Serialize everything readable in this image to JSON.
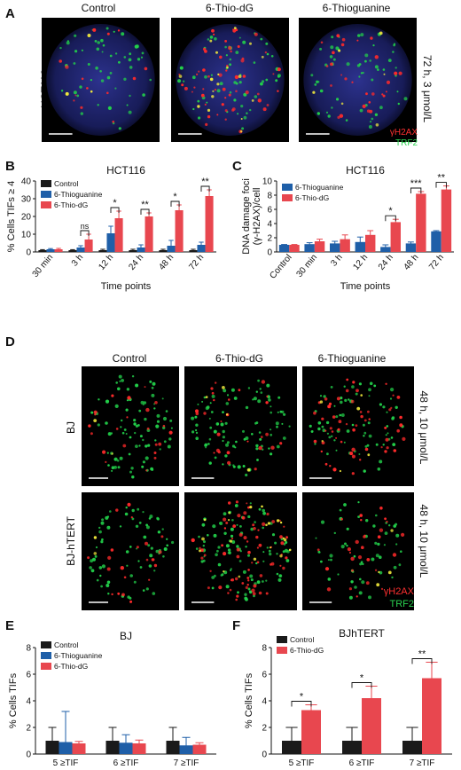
{
  "colors": {
    "control": "#1a1a1a",
    "thioguanine": "#1f5fa8",
    "thio_dg": "#e8474f",
    "micro_bg": "#000000",
    "red_spot": "#ff2a2a",
    "green_spot": "#22d04a",
    "yellow_spot": "#f2ea3c",
    "nucleus": "#2a2f86"
  },
  "panels": {
    "A": {
      "letter": "A",
      "columns": [
        "Control",
        "6-Thio-dG",
        "6-Thioguanine"
      ],
      "row_label": "HCT116",
      "side_label": "72 h, 3 μmol/L",
      "legend": [
        "γH2AX",
        "TRF2"
      ]
    },
    "D": {
      "letter": "D",
      "columns": [
        "Control",
        "6-Thio-dG",
        "6-Thioguanine"
      ],
      "rows": [
        {
          "label": "BJ",
          "side_label": "48 h, 10 μmol/L"
        },
        {
          "label": "BJ-hTERT",
          "side_label": "48 h, 10 μmol/L"
        }
      ],
      "legend": [
        "γH2AX",
        "TRF2"
      ]
    }
  },
  "chart_data": [
    {
      "panel": "B",
      "type": "bar",
      "title": "HCT116",
      "xlabel": "Time points",
      "ylabel": "% Cells TIFs ≥ 4",
      "ylim": [
        0,
        40
      ],
      "yticks": [
        0,
        10,
        20,
        30,
        40
      ],
      "categories": [
        "30 min",
        "3 h",
        "12 h",
        "24 h",
        "48 h",
        "72 h"
      ],
      "legend_position": "top-left",
      "series": [
        {
          "name": "Control",
          "color": "#1a1a1a",
          "values": [
            1,
            1,
            1,
            1,
            1,
            1
          ],
          "errors": [
            0.3,
            0.3,
            0.5,
            0.5,
            0.5,
            0.5
          ]
        },
        {
          "name": "6-Thioguanine",
          "color": "#1f5fa8",
          "values": [
            1.5,
            2.5,
            10.5,
            2.5,
            3.5,
            4
          ],
          "errors": [
            0.4,
            1,
            4,
            1.5,
            3,
            1.5
          ]
        },
        {
          "name": "6-Thio-dG",
          "color": "#e8474f",
          "values": [
            1.5,
            7,
            19,
            20,
            23.5,
            31.5
          ],
          "errors": [
            0.5,
            3,
            4,
            2,
            3,
            3.5
          ]
        }
      ],
      "significance": [
        {
          "category": "3 h",
          "label": "ns"
        },
        {
          "category": "12 h",
          "label": "*"
        },
        {
          "category": "24 h",
          "label": "**"
        },
        {
          "category": "48 h",
          "label": "*"
        },
        {
          "category": "72 h",
          "label": "**"
        }
      ]
    },
    {
      "panel": "C",
      "type": "bar",
      "title": "HCT116",
      "xlabel": "Time points",
      "ylabel": "DNA damage foci (γ-H2AX)/cell",
      "ylabel_lines": [
        "DNA damage foci",
        "(γ-H2AX)/cell"
      ],
      "ylim": [
        0,
        10
      ],
      "yticks": [
        0,
        2,
        4,
        6,
        8,
        10
      ],
      "categories": [
        "Control",
        "30 min",
        "3 h",
        "12 h",
        "24 h",
        "48 h",
        "72 h"
      ],
      "legend_position": "top-left",
      "series": [
        {
          "name": "6-Thioguanine",
          "color": "#1f5fa8",
          "values": [
            1,
            1.1,
            1.2,
            1.4,
            0.7,
            1.2,
            2.9
          ],
          "errors": [
            0.05,
            0.2,
            0.3,
            0.7,
            0.3,
            0.2,
            0.1
          ]
        },
        {
          "name": "6-Thio-dG",
          "color": "#e8474f",
          "values": [
            1,
            1.5,
            1.8,
            2.4,
            4.2,
            8.2,
            8.8
          ],
          "errors": [
            0.05,
            0.3,
            0.6,
            0.6,
            0.4,
            0.3,
            0.5
          ]
        }
      ],
      "significance": [
        {
          "category": "24 h",
          "label": "*"
        },
        {
          "category": "48 h",
          "label": "***"
        },
        {
          "category": "72 h",
          "label": "**"
        }
      ]
    },
    {
      "panel": "E",
      "type": "bar",
      "title": "BJ",
      "xlabel": "",
      "ylabel": "% Cells TIFs",
      "ylim": [
        0,
        8
      ],
      "yticks": [
        0,
        2,
        4,
        6,
        8
      ],
      "categories": [
        "5 ≥TIF",
        "6 ≥TIF",
        "7 ≥TIF"
      ],
      "legend_position": "top-left",
      "series": [
        {
          "name": "Control",
          "color": "#1a1a1a",
          "values": [
            1,
            1,
            1
          ],
          "errors": [
            1,
            1,
            1
          ]
        },
        {
          "name": "6-Thioguanine",
          "color": "#1f5fa8",
          "values": [
            0.9,
            0.85,
            0.65
          ],
          "errors": [
            2.3,
            0.6,
            0.6
          ]
        },
        {
          "name": "6-Thio-dG",
          "color": "#e8474f",
          "values": [
            0.8,
            0.8,
            0.7
          ],
          "errors": [
            0.15,
            0.25,
            0.15
          ]
        }
      ],
      "significance": []
    },
    {
      "panel": "F",
      "type": "bar",
      "title": "BJhTERT",
      "xlabel": "",
      "ylabel": "% Cells TIFs",
      "ylim": [
        0,
        8
      ],
      "yticks": [
        0,
        2,
        4,
        6,
        8
      ],
      "categories": [
        "5 ≥TIF",
        "6 ≥TIF",
        "7 ≥TIF"
      ],
      "legend_position": "top-left",
      "series": [
        {
          "name": "Control",
          "color": "#1a1a1a",
          "values": [
            1,
            1,
            1
          ],
          "errors": [
            1,
            1,
            1
          ]
        },
        {
          "name": "6-Thio-dG",
          "color": "#e8474f",
          "values": [
            3.3,
            4.2,
            5.7
          ],
          "errors": [
            0.4,
            0.9,
            1.2
          ]
        }
      ],
      "significance": [
        {
          "category": "5 ≥TIF",
          "label": "*"
        },
        {
          "category": "6 ≥TIF",
          "label": "*"
        },
        {
          "category": "7 ≥TIF",
          "label": "**"
        }
      ]
    }
  ]
}
